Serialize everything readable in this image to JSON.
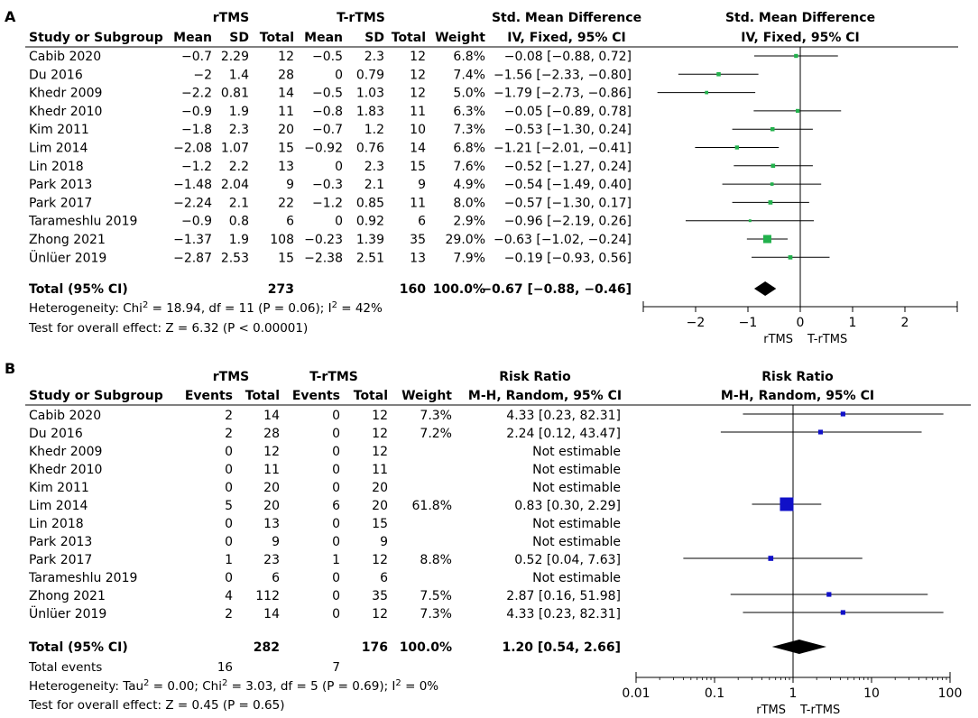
{
  "colors": {
    "a_marker": "#22b14c",
    "b_marker": "#1010c8",
    "line": "#000000"
  },
  "panel_a": {
    "label": "A",
    "headers": {
      "group1": "rTMS",
      "group2": "T-rTMS",
      "effect_title": "Std. Mean Difference",
      "col_study": "Study or Subgroup",
      "col_mean1": "Mean",
      "col_sd1": "SD",
      "col_total1": "Total",
      "col_mean2": "Mean",
      "col_sd2": "SD",
      "col_total2": "Total",
      "col_weight": "Weight",
      "effect_method": "IV, Fixed, 95% CI",
      "plot_title": "Std. Mean Difference",
      "plot_method": "IV, Fixed, 95% CI"
    },
    "rows": [
      {
        "study": "Cabib 2020",
        "mean1": "−0.7",
        "sd1": "2.29",
        "total1": "12",
        "mean2": "−0.5",
        "sd2": "2.3",
        "total2": "12",
        "weight": "6.8%",
        "ci_text": "−0.08 [−0.88, 0.72]"
      },
      {
        "study": "Du 2016",
        "mean1": "−2",
        "sd1": "1.4",
        "total1": "28",
        "mean2": "0",
        "sd2": "0.79",
        "total2": "12",
        "weight": "7.4%",
        "ci_text": "−1.56 [−2.33, −0.80]"
      },
      {
        "study": "Khedr 2009",
        "mean1": "−2.2",
        "sd1": "0.81",
        "total1": "14",
        "mean2": "−0.5",
        "sd2": "1.03",
        "total2": "12",
        "weight": "5.0%",
        "ci_text": "−1.79 [−2.73, −0.86]"
      },
      {
        "study": "Khedr 2010",
        "mean1": "−0.9",
        "sd1": "1.9",
        "total1": "11",
        "mean2": "−0.8",
        "sd2": "1.83",
        "total2": "11",
        "weight": "6.3%",
        "ci_text": "−0.05 [−0.89, 0.78]"
      },
      {
        "study": "Kim 2011",
        "mean1": "−1.8",
        "sd1": "2.3",
        "total1": "20",
        "mean2": "−0.7",
        "sd2": "1.2",
        "total2": "10",
        "weight": "7.3%",
        "ci_text": "−0.53 [−1.30, 0.24]"
      },
      {
        "study": "Lim 2014",
        "mean1": "−2.08",
        "sd1": "1.07",
        "total1": "15",
        "mean2": "−0.92",
        "sd2": "0.76",
        "total2": "14",
        "weight": "6.8%",
        "ci_text": "−1.21 [−2.01, −0.41]"
      },
      {
        "study": "Lin 2018",
        "mean1": "−1.2",
        "sd1": "2.2",
        "total1": "13",
        "mean2": "0",
        "sd2": "2.3",
        "total2": "15",
        "weight": "7.6%",
        "ci_text": "−0.52 [−1.27, 0.24]"
      },
      {
        "study": "Park 2013",
        "mean1": "−1.48",
        "sd1": "2.04",
        "total1": "9",
        "mean2": "−0.3",
        "sd2": "2.1",
        "total2": "9",
        "weight": "4.9%",
        "ci_text": "−0.54 [−1.49, 0.40]"
      },
      {
        "study": "Park 2017",
        "mean1": "−2.24",
        "sd1": "2.1",
        "total1": "22",
        "mean2": "−1.2",
        "sd2": "0.85",
        "total2": "11",
        "weight": "8.0%",
        "ci_text": "−0.57 [−1.30, 0.17]"
      },
      {
        "study": "Tarameshlu 2019",
        "mean1": "−0.9",
        "sd1": "0.8",
        "total1": "6",
        "mean2": "0",
        "sd2": "0.92",
        "total2": "6",
        "weight": "2.9%",
        "ci_text": "−0.96 [−2.19, 0.26]"
      },
      {
        "study": "Zhong 2021",
        "mean1": "−1.37",
        "sd1": "1.9",
        "total1": "108",
        "mean2": "−0.23",
        "sd2": "1.39",
        "total2": "35",
        "weight": "29.0%",
        "ci_text": "−0.63 [−1.02, −0.24]"
      },
      {
        "study": "Ünlüer 2019",
        "mean1": "−2.87",
        "sd1": "2.53",
        "total1": "15",
        "mean2": "−2.38",
        "sd2": "2.51",
        "total2": "13",
        "weight": "7.9%",
        "ci_text": "−0.19 [−0.93, 0.56]"
      }
    ],
    "total": {
      "label": "Total (95% CI)",
      "total1": "273",
      "total2": "160",
      "weight": "100.0%",
      "ci_text": "−0.67 [−0.88, −0.46]"
    },
    "heterogeneity_prefix": "Heterogeneity: Chi",
    "heterogeneity_mid": " = 18.94, df = 11 (P = 0.06); I",
    "heterogeneity_suffix": " = 42%",
    "sup2": "2",
    "overall_effect": "Test for overall effect: Z = 6.32 (P < 0.00001)",
    "axis_left_label": "rTMS",
    "axis_right_label": "T-rTMS"
  },
  "panel_b": {
    "label": "B",
    "headers": {
      "group1": "rTMS",
      "group2": "T-rTMS",
      "effect_title": "Risk Ratio",
      "col_study": "Study or Subgroup",
      "col_events1": "Events",
      "col_total1": "Total",
      "col_events2": "Events",
      "col_total2": "Total",
      "col_weight": "Weight",
      "effect_method": "M-H, Random, 95% CI",
      "plot_title": "Risk Ratio",
      "plot_method": "M-H, Random, 95% CI"
    },
    "rows": [
      {
        "study": "Cabib 2020",
        "events1": "2",
        "total1": "14",
        "events2": "0",
        "total2": "12",
        "weight": "7.3%",
        "ci_text": "4.33 [0.23, 82.31]"
      },
      {
        "study": "Du 2016",
        "events1": "2",
        "total1": "28",
        "events2": "0",
        "total2": "12",
        "weight": "7.2%",
        "ci_text": "2.24 [0.12, 43.47]"
      },
      {
        "study": "Khedr 2009",
        "events1": "0",
        "total1": "12",
        "events2": "0",
        "total2": "12",
        "weight": "",
        "ci_text": "Not estimable"
      },
      {
        "study": "Khedr 2010",
        "events1": "0",
        "total1": "11",
        "events2": "0",
        "total2": "11",
        "weight": "",
        "ci_text": "Not estimable"
      },
      {
        "study": "Kim 2011",
        "events1": "0",
        "total1": "20",
        "events2": "0",
        "total2": "20",
        "weight": "",
        "ci_text": "Not estimable"
      },
      {
        "study": "Lim 2014",
        "events1": "5",
        "total1": "20",
        "events2": "6",
        "total2": "20",
        "weight": "61.8%",
        "ci_text": "0.83 [0.30, 2.29]"
      },
      {
        "study": "Lin 2018",
        "events1": "0",
        "total1": "13",
        "events2": "0",
        "total2": "15",
        "weight": "",
        "ci_text": "Not estimable"
      },
      {
        "study": "Park 2013",
        "events1": "0",
        "total1": "9",
        "events2": "0",
        "total2": "9",
        "weight": "",
        "ci_text": "Not estimable"
      },
      {
        "study": "Park 2017",
        "events1": "1",
        "total1": "23",
        "events2": "1",
        "total2": "12",
        "weight": "8.8%",
        "ci_text": "0.52 [0.04, 7.63]"
      },
      {
        "study": "Tarameshlu 2019",
        "events1": "0",
        "total1": "6",
        "events2": "0",
        "total2": "6",
        "weight": "",
        "ci_text": "Not estimable"
      },
      {
        "study": "Zhong 2021",
        "events1": "4",
        "total1": "112",
        "events2": "0",
        "total2": "35",
        "weight": "7.5%",
        "ci_text": "2.87 [0.16, 51.98]"
      },
      {
        "study": "Ünlüer 2019",
        "events1": "2",
        "total1": "14",
        "events2": "0",
        "total2": "12",
        "weight": "7.3%",
        "ci_text": "4.33 [0.23, 82.31]"
      }
    ],
    "total": {
      "label": "Total (95% CI)",
      "total1": "282",
      "total2": "176",
      "weight": "100.0%",
      "ci_text": "1.20 [0.54, 2.66]"
    },
    "total_events": {
      "label": "Total events",
      "events1": "16",
      "events2": "7"
    },
    "heterogeneity_prefix": "Heterogeneity: Tau",
    "heterogeneity_mid1": " = 0.00; Chi",
    "heterogeneity_mid2": " = 3.03, df = 5 (P = 0.69); I",
    "heterogeneity_suffix": " = 0%",
    "sup2": "2",
    "overall_effect": "Test for overall effect: Z = 0.45 (P = 0.65)",
    "axis_left_label": "rTMS",
    "axis_right_label": "T-rTMS"
  },
  "chart_data": [
    {
      "type": "forest",
      "scale": "linear",
      "xlim": [
        -3,
        3
      ],
      "ticks": [
        -2,
        -1,
        0,
        1,
        2
      ],
      "tick_labels": [
        "−2",
        "−1",
        "0",
        "1",
        "2"
      ],
      "studies": [
        {
          "name": "Cabib 2020",
          "est": -0.08,
          "lo": -0.88,
          "hi": 0.72,
          "weight": 6.8
        },
        {
          "name": "Du 2016",
          "est": -1.56,
          "lo": -2.33,
          "hi": -0.8,
          "weight": 7.4
        },
        {
          "name": "Khedr 2009",
          "est": -1.79,
          "lo": -2.73,
          "hi": -0.86,
          "weight": 5.0
        },
        {
          "name": "Khedr 2010",
          "est": -0.05,
          "lo": -0.89,
          "hi": 0.78,
          "weight": 6.3
        },
        {
          "name": "Kim 2011",
          "est": -0.53,
          "lo": -1.3,
          "hi": 0.24,
          "weight": 7.3
        },
        {
          "name": "Lim 2014",
          "est": -1.21,
          "lo": -2.01,
          "hi": -0.41,
          "weight": 6.8
        },
        {
          "name": "Lin 2018",
          "est": -0.52,
          "lo": -1.27,
          "hi": 0.24,
          "weight": 7.6
        },
        {
          "name": "Park 2013",
          "est": -0.54,
          "lo": -1.49,
          "hi": 0.4,
          "weight": 4.9
        },
        {
          "name": "Park 2017",
          "est": -0.57,
          "lo": -1.3,
          "hi": 0.17,
          "weight": 8.0
        },
        {
          "name": "Tarameshlu 2019",
          "est": -0.96,
          "lo": -2.19,
          "hi": 0.26,
          "weight": 2.9
        },
        {
          "name": "Zhong 2021",
          "est": -0.63,
          "lo": -1.02,
          "hi": -0.24,
          "weight": 29.0
        },
        {
          "name": "Ünlüer 2019",
          "est": -0.19,
          "lo": -0.93,
          "hi": 0.56,
          "weight": 7.9
        }
      ],
      "pooled": {
        "est": -0.67,
        "lo": -0.88,
        "hi": -0.46
      },
      "xlabel_left": "rTMS",
      "xlabel_right": "T-rTMS"
    },
    {
      "type": "forest",
      "scale": "log",
      "xlim": [
        0.01,
        100
      ],
      "ticks": [
        0.01,
        0.1,
        1,
        10,
        100
      ],
      "tick_labels": [
        "0.01",
        "0.1",
        "1",
        "10",
        "100"
      ],
      "studies": [
        {
          "name": "Cabib 2020",
          "est": 4.33,
          "lo": 0.23,
          "hi": 82.31,
          "weight": 7.3
        },
        {
          "name": "Du 2016",
          "est": 2.24,
          "lo": 0.12,
          "hi": 43.47,
          "weight": 7.2
        },
        {
          "name": "Khedr 2009",
          "est": null
        },
        {
          "name": "Khedr 2010",
          "est": null
        },
        {
          "name": "Kim 2011",
          "est": null
        },
        {
          "name": "Lim 2014",
          "est": 0.83,
          "lo": 0.3,
          "hi": 2.29,
          "weight": 61.8
        },
        {
          "name": "Lin 2018",
          "est": null
        },
        {
          "name": "Park 2013",
          "est": null
        },
        {
          "name": "Park 2017",
          "est": 0.52,
          "lo": 0.04,
          "hi": 7.63,
          "weight": 8.8
        },
        {
          "name": "Tarameshlu 2019",
          "est": null
        },
        {
          "name": "Zhong 2021",
          "est": 2.87,
          "lo": 0.16,
          "hi": 51.98,
          "weight": 7.5
        },
        {
          "name": "Ünlüer 2019",
          "est": 4.33,
          "lo": 0.23,
          "hi": 82.31,
          "weight": 7.3
        }
      ],
      "pooled": {
        "est": 1.2,
        "lo": 0.54,
        "hi": 2.66
      },
      "xlabel_left": "rTMS",
      "xlabel_right": "T-rTMS"
    }
  ]
}
